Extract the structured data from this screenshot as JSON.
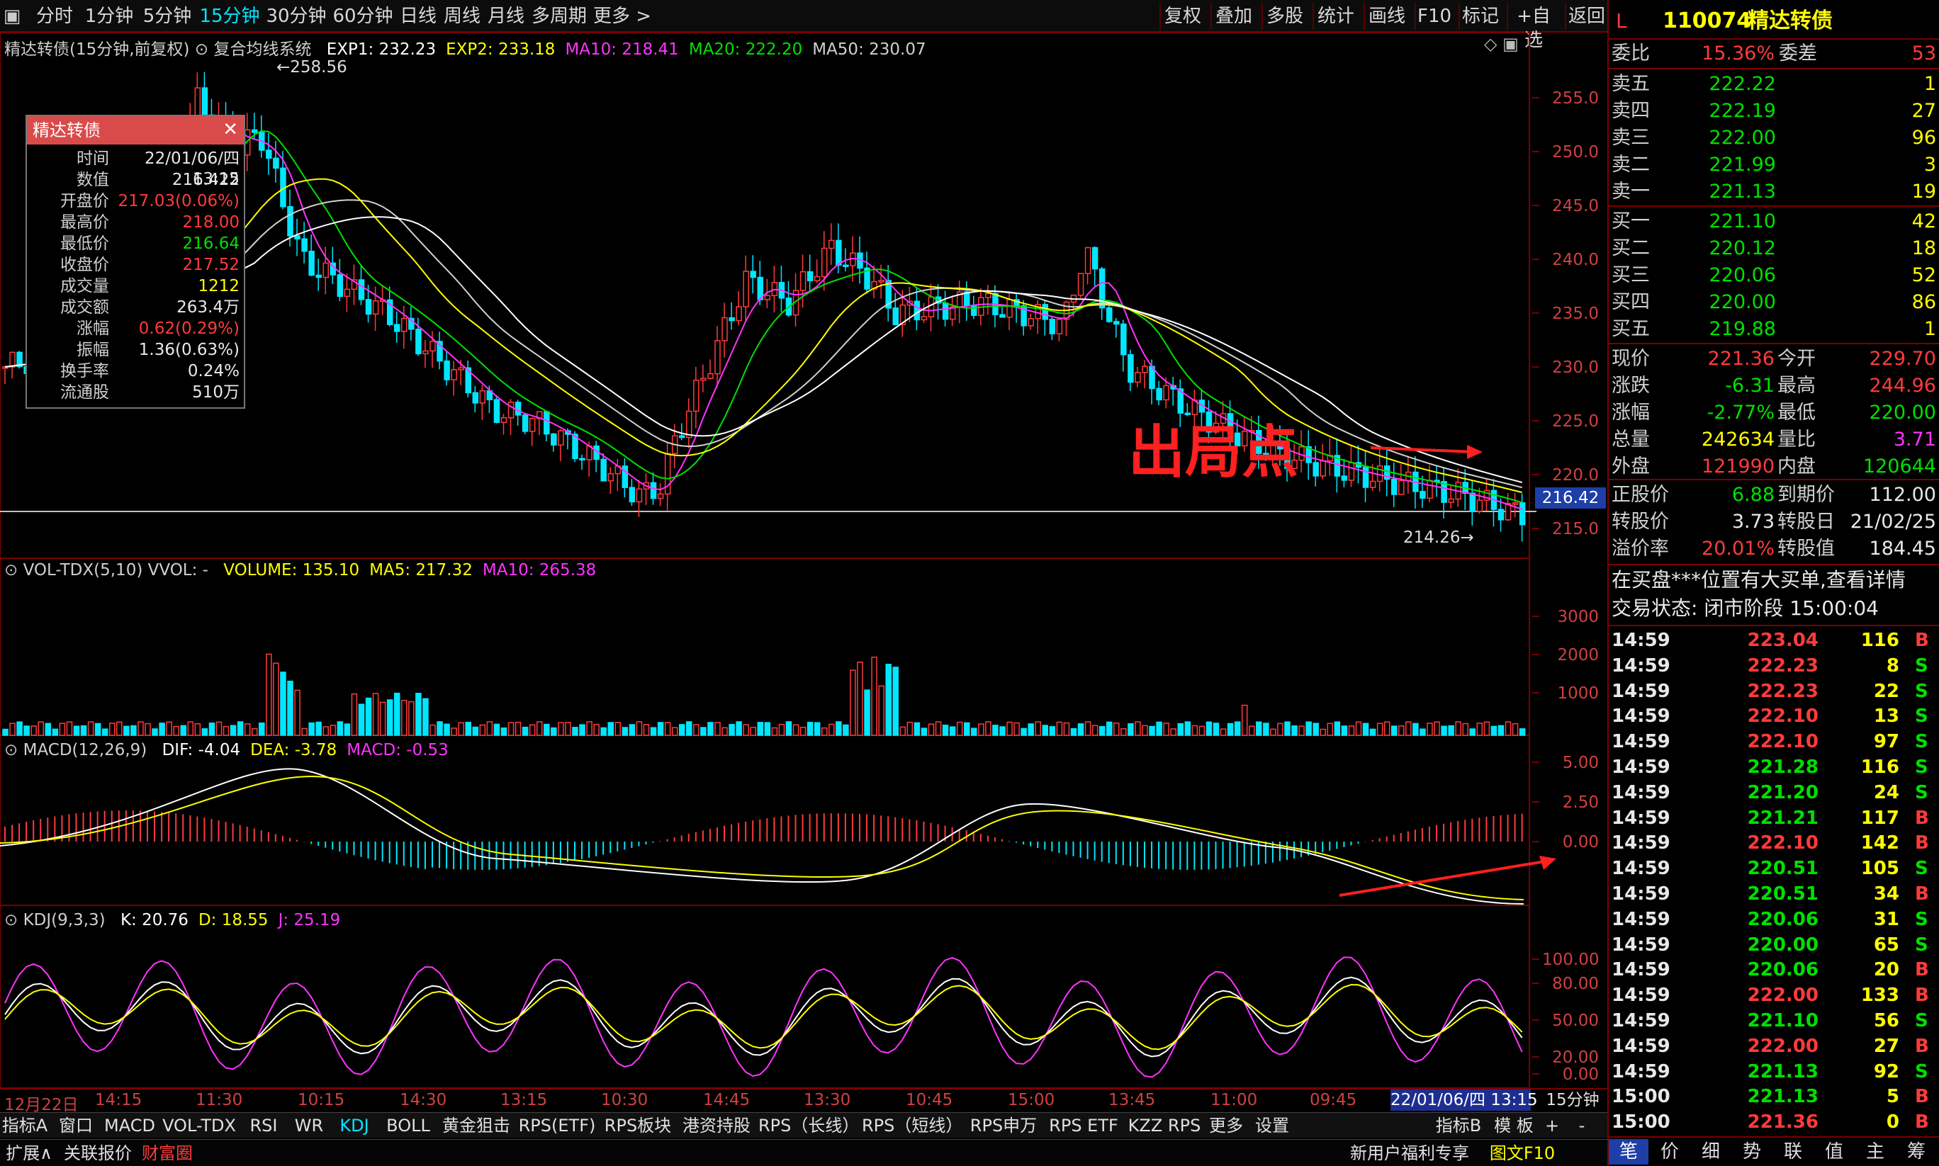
{
  "toolbar": {
    "periods": [
      "分时",
      "1分钟",
      "5分钟",
      "15分钟",
      "30分钟",
      "60分钟",
      "日线",
      "周线",
      "月线",
      "多周期",
      "更多 >"
    ],
    "active_period": "15分钟",
    "actions": [
      "复权",
      "叠加",
      "多股",
      "统计",
      "画线",
      "F10",
      "标记",
      "+自选",
      "返回"
    ]
  },
  "main_pane": {
    "title": "精达转债(15分钟,前复权)",
    "system": "复合均线系统",
    "indicators": [
      {
        "label": "EXP1: 232.23",
        "color": "#ffffff"
      },
      {
        "label": "EXP2: 233.18",
        "color": "#ffff00"
      },
      {
        "label": "MA10: 218.41",
        "color": "#ff33ff"
      },
      {
        "label": "MA20: 222.20",
        "color": "#00e000"
      },
      {
        "label": "MA50: 230.07",
        "color": "#d0d0d0"
      }
    ],
    "y_ticks": [
      "255.0",
      "250.0",
      "245.0",
      "240.0",
      "235.0",
      "230.0",
      "225.0",
      "220.0",
      "215.0"
    ],
    "high_marker": "258.56",
    "low_marker": "214.26",
    "current_price_tag": "216.42",
    "annotation": "出局点"
  },
  "popup": {
    "title": "精达转债",
    "rows": [
      {
        "label": "时间",
        "value": "22/01/06/四 13:15",
        "color": "#e8e8e8"
      },
      {
        "label": "数值",
        "value": "216.422",
        "color": "#e8e8e8"
      },
      {
        "label": "开盘价",
        "value": "217.03(0.06%)",
        "color": "#ff3b3b"
      },
      {
        "label": "最高价",
        "value": "218.00",
        "color": "#ff3b3b"
      },
      {
        "label": "最低价",
        "value": "216.64",
        "color": "#00e000"
      },
      {
        "label": "收盘价",
        "value": "217.52",
        "color": "#ff3b3b"
      },
      {
        "label": "成交量",
        "value": "1212",
        "color": "#ffff00"
      },
      {
        "label": "成交额",
        "value": "263.4万",
        "color": "#e8e8e8"
      },
      {
        "label": "涨幅",
        "value": "0.62(0.29%)",
        "color": "#ff3b3b"
      },
      {
        "label": "振幅",
        "value": "1.36(0.63%)",
        "color": "#e8e8e8"
      },
      {
        "label": "换手率",
        "value": "0.24%",
        "color": "#e8e8e8"
      },
      {
        "label": "流通股",
        "value": "510万",
        "color": "#e8e8e8"
      }
    ]
  },
  "vol_pane": {
    "title": "VOL-TDX(5,10)",
    "vvol": "VVOL: -",
    "indicators": [
      {
        "label": "VOLUME: 135.10",
        "color": "#ffff00"
      },
      {
        "label": "MA5: 217.32",
        "color": "#ffff00"
      },
      {
        "label": "MA10: 265.38",
        "color": "#ff33ff"
      }
    ],
    "y_ticks": [
      "3000",
      "2000",
      "1000"
    ]
  },
  "macd_pane": {
    "title": "MACD(12,26,9)",
    "indicators": [
      {
        "label": "DIF: -4.04",
        "color": "#ffffff"
      },
      {
        "label": "DEA: -3.78",
        "color": "#ffff00"
      },
      {
        "label": "MACD: -0.53",
        "color": "#ff33ff"
      }
    ],
    "y_ticks": [
      "5.00",
      "2.50",
      "0.00"
    ]
  },
  "kdj_pane": {
    "title": "KDJ(9,3,3)",
    "indicators": [
      {
        "label": "K: 20.76",
        "color": "#ffffff"
      },
      {
        "label": "D: 18.55",
        "color": "#ffff00"
      },
      {
        "label": "J: 25.19",
        "color": "#ff33ff"
      }
    ],
    "y_ticks": [
      "100.00",
      "80.00",
      "50.00",
      "20.00",
      "0.00"
    ]
  },
  "time_axis": {
    "labels": [
      "12月22日",
      "14:15",
      "11:30",
      "10:15",
      "14:30",
      "13:15",
      "10:30",
      "14:45",
      "13:30",
      "10:45",
      "15:00",
      "13:45",
      "11:00",
      "09:45"
    ],
    "cursor_label": "22/01/06/四 13:15",
    "period_label": "15分钟"
  },
  "tabs": {
    "left_label": "指标A",
    "items": [
      "窗口",
      "MACD",
      "VOL-TDX",
      "RSI",
      "WR",
      "KDJ",
      "BOLL",
      "黄金狙击",
      "RPS(ETF)",
      "RPS板块",
      "港资持股",
      "RPS（长线）",
      "RPS（短线）",
      "RPS申万",
      "RPS ETF",
      "KZZ RPS",
      "更多",
      "设置"
    ],
    "active": "KDJ",
    "right_items": [
      "指标B",
      "模 板",
      "+",
      "-"
    ]
  },
  "status_bar": {
    "items": [
      "扩展∧",
      "关联报价",
      "财富圈"
    ],
    "right_items": [
      "新用户福利专享",
      "图文F10"
    ]
  },
  "quote": {
    "flag": "L",
    "code": "110074",
    "name": "精达转债",
    "weibi_label": "委比",
    "weibi": "15.36%",
    "weicha_label": "委差",
    "weicha": "53",
    "sell": [
      {
        "label": "卖五",
        "price": "222.22",
        "vol": "1"
      },
      {
        "label": "卖四",
        "price": "222.19",
        "vol": "27"
      },
      {
        "label": "卖三",
        "price": "222.00",
        "vol": "96"
      },
      {
        "label": "卖二",
        "price": "221.99",
        "vol": "3"
      },
      {
        "label": "卖一",
        "price": "221.13",
        "vol": "19"
      }
    ],
    "buy": [
      {
        "label": "买一",
        "price": "221.10",
        "vol": "42"
      },
      {
        "label": "买二",
        "price": "220.12",
        "vol": "18"
      },
      {
        "label": "买三",
        "price": "220.06",
        "vol": "52"
      },
      {
        "label": "买四",
        "price": "220.00",
        "vol": "86"
      },
      {
        "label": "买五",
        "price": "219.88",
        "vol": "1"
      }
    ],
    "stats": [
      {
        "l1": "现价",
        "v1": "221.36",
        "c1": "#ff3b3b",
        "l2": "今开",
        "v2": "229.70",
        "c2": "#ff3b3b"
      },
      {
        "l1": "涨跌",
        "v1": "-6.31",
        "c1": "#00e000",
        "l2": "最高",
        "v2": "244.96",
        "c2": "#ff3b3b"
      },
      {
        "l1": "涨幅",
        "v1": "-2.77%",
        "c1": "#00e000",
        "l2": "最低",
        "v2": "220.00",
        "c2": "#00e000"
      },
      {
        "l1": "总量",
        "v1": "242634",
        "c1": "#ffff00",
        "l2": "量比",
        "v2": "3.71",
        "c2": "#ff33ff"
      },
      {
        "l1": "外盘",
        "v1": "121990",
        "c1": "#ff3b3b",
        "l2": "内盘",
        "v2": "120644",
        "c2": "#00e000"
      }
    ],
    "bond": [
      {
        "l1": "正股价",
        "v1": "6.88",
        "c1": "#00e000",
        "l2": "到期价",
        "v2": "112.00",
        "c2": "#e8e8e8"
      },
      {
        "l1": "转股价",
        "v1": "3.73",
        "c1": "#e8e8e8",
        "l2": "转股日",
        "v2": "21/02/25",
        "c2": "#e8e8e8"
      },
      {
        "l1": "溢价率",
        "v1": "20.01%",
        "c1": "#ff3b3b",
        "l2": "转股值",
        "v2": "184.45",
        "c2": "#e8e8e8"
      }
    ],
    "notice": "在买盘***位置有大买单,查看详情",
    "trade_state": "交易状态: 闭市阶段 15:00:04",
    "ticks": [
      {
        "t": "14:59",
        "p": "223.04",
        "v": "116",
        "s": "B"
      },
      {
        "t": "14:59",
        "p": "222.23",
        "v": "8",
        "s": "S"
      },
      {
        "t": "14:59",
        "p": "222.23",
        "v": "22",
        "s": "S"
      },
      {
        "t": "14:59",
        "p": "222.10",
        "v": "13",
        "s": "S"
      },
      {
        "t": "14:59",
        "p": "222.10",
        "v": "97",
        "s": "S"
      },
      {
        "t": "14:59",
        "p": "221.28",
        "v": "116",
        "s": "S"
      },
      {
        "t": "14:59",
        "p": "221.20",
        "v": "24",
        "s": "S"
      },
      {
        "t": "14:59",
        "p": "221.21",
        "v": "117",
        "s": "B"
      },
      {
        "t": "14:59",
        "p": "222.10",
        "v": "142",
        "s": "B"
      },
      {
        "t": "14:59",
        "p": "220.51",
        "v": "105",
        "s": "S"
      },
      {
        "t": "14:59",
        "p": "220.51",
        "v": "34",
        "s": "B"
      },
      {
        "t": "14:59",
        "p": "220.06",
        "v": "31",
        "s": "S"
      },
      {
        "t": "14:59",
        "p": "220.00",
        "v": "65",
        "s": "S"
      },
      {
        "t": "14:59",
        "p": "220.06",
        "v": "20",
        "s": "B"
      },
      {
        "t": "14:59",
        "p": "222.00",
        "v": "133",
        "s": "B"
      },
      {
        "t": "14:59",
        "p": "221.10",
        "v": "56",
        "s": "S"
      },
      {
        "t": "14:59",
        "p": "222.00",
        "v": "27",
        "s": "B"
      },
      {
        "t": "14:59",
        "p": "221.13",
        "v": "92",
        "s": "S"
      },
      {
        "t": "15:00",
        "p": "221.13",
        "v": "5",
        "s": "B"
      },
      {
        "t": "15:00",
        "p": "221.36",
        "v": "0",
        "s": "B"
      }
    ],
    "bottom_tabs": [
      "笔",
      "价",
      "细",
      "势",
      "联",
      "值",
      "主",
      "筹"
    ]
  },
  "colors": {
    "up": "#ff3b3b",
    "down": "#00e6ff",
    "frame": "#7a0000",
    "accent": "#00e6ff"
  }
}
